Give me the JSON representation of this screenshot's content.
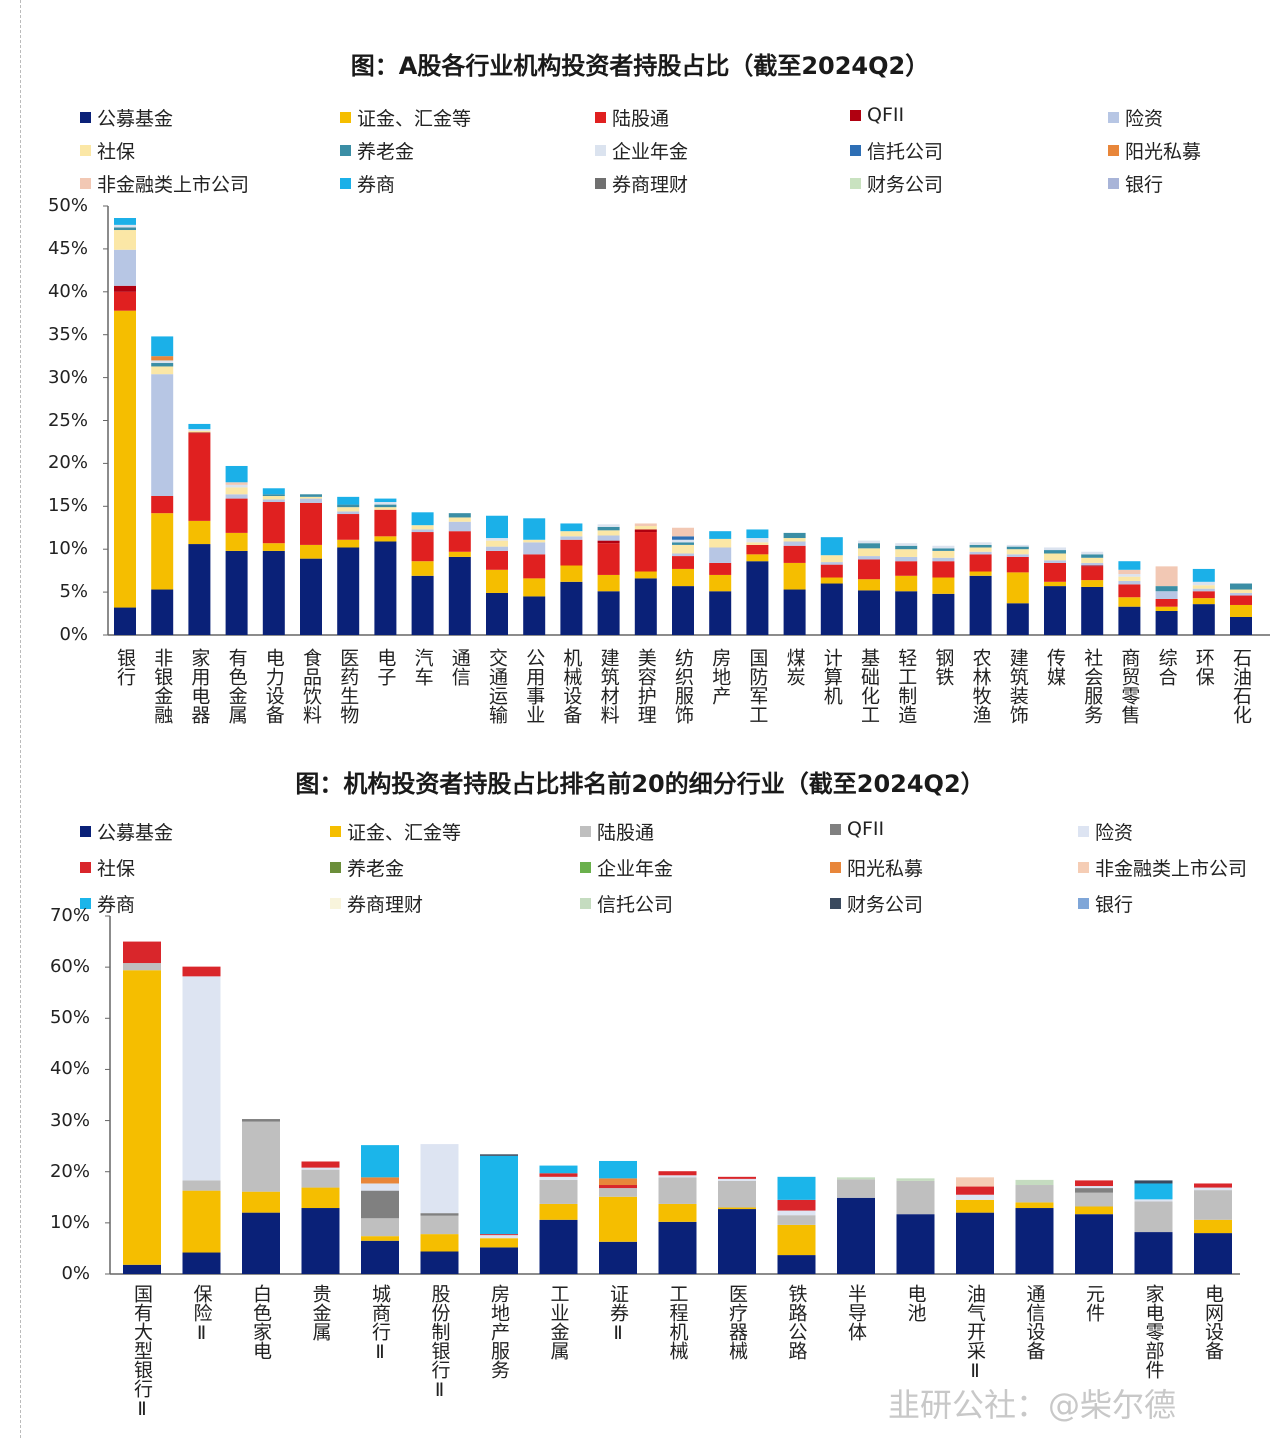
{
  "watermark": "韭研公社：@柴尔德",
  "chart_data": [
    {
      "type": "bar",
      "stacked": true,
      "title": "图：A股各行业机构投资者持股占比（截至2024Q2）",
      "ylim": [
        0,
        50
      ],
      "yticks": [
        "0%",
        "5%",
        "10%",
        "15%",
        "20%",
        "25%",
        "30%",
        "35%",
        "40%",
        "45%",
        "50%"
      ],
      "legend_position": "top",
      "grid": false,
      "categories": [
        "银行",
        "非银金融",
        "家用电器",
        "有色金属",
        "电力设备",
        "食品饮料",
        "医药生物",
        "电子",
        "汽车",
        "通信",
        "交通运输",
        "公用事业",
        "机械设备",
        "建筑材料",
        "美容护理",
        "纺织服饰",
        "房地产",
        "国防军工",
        "煤炭",
        "计算机",
        "基础化工",
        "轻工制造",
        "钢铁",
        "农林牧渔",
        "建筑装饰",
        "传媒",
        "社会服务",
        "商贸零售",
        "综合",
        "环保",
        "石油石化"
      ],
      "series": [
        {
          "name": "公募基金",
          "color": "#0a2178",
          "values": [
            3.2,
            5.3,
            10.6,
            9.8,
            9.8,
            8.9,
            10.2,
            10.9,
            6.9,
            9.1,
            4.9,
            4.5,
            6.2,
            5.1,
            6.6,
            5.7,
            5.1,
            8.6,
            5.3,
            6.0,
            5.2,
            5.1,
            4.8,
            6.9,
            3.7,
            5.7,
            5.6,
            3.3,
            2.8,
            3.6,
            2.1
          ]
        },
        {
          "name": "证金、汇金等",
          "color": "#f5be00",
          "values": [
            34.6,
            8.9,
            2.7,
            2.1,
            0.9,
            1.6,
            0.9,
            0.6,
            1.7,
            0.6,
            2.7,
            2.1,
            1.9,
            1.9,
            0.8,
            2.0,
            1.9,
            0.8,
            3.1,
            0.7,
            1.3,
            1.8,
            1.9,
            0.5,
            3.6,
            0.5,
            0.8,
            1.1,
            0.5,
            0.7,
            1.4
          ]
        },
        {
          "name": "陆股通",
          "color": "#e02020",
          "values": [
            2.2,
            2.0,
            10.2,
            4.0,
            4.8,
            4.9,
            3.0,
            3.1,
            3.4,
            2.4,
            2.2,
            2.8,
            3.0,
            3.7,
            4.6,
            1.5,
            1.4,
            1.1,
            2.0,
            1.5,
            2.3,
            1.7,
            1.9,
            2.0,
            1.8,
            2.2,
            1.6,
            1.5,
            0.9,
            0.8,
            1.1
          ]
        },
        {
          "name": "QFII",
          "color": "#b00010",
          "values": [
            0.7,
            0,
            0.1,
            0,
            0,
            0,
            0,
            0,
            0,
            0,
            0,
            0,
            0,
            0.3,
            0.3,
            0,
            0,
            0,
            0,
            0,
            0,
            0,
            0,
            0,
            0,
            0,
            0.1,
            0,
            0,
            0,
            0
          ]
        },
        {
          "name": "险资",
          "color": "#b7c6e4",
          "values": [
            4.2,
            14.2,
            0,
            0.5,
            0.3,
            0.5,
            0.3,
            0,
            0.3,
            1.1,
            0.5,
            1.4,
            0.4,
            0.6,
            0,
            0.3,
            1.8,
            0,
            0.5,
            0.3,
            0.4,
            0.5,
            0.4,
            0.3,
            0.3,
            0.3,
            0.3,
            0.4,
            0.9,
            0.3,
            0.3
          ]
        },
        {
          "name": "社保",
          "color": "#fbe7a6",
          "values": [
            2.3,
            0.9,
            0.2,
            0.8,
            0.4,
            0.2,
            0.5,
            0.3,
            0.5,
            0.5,
            0.7,
            0.3,
            0.6,
            0.6,
            0.4,
            1.0,
            1.0,
            0.3,
            0.4,
            0.8,
            0.9,
            0.9,
            0.8,
            0.5,
            0.6,
            0.8,
            0.6,
            0.5,
            0,
            0.4,
            0.4
          ]
        },
        {
          "name": "养老金",
          "color": "#3b8ea5",
          "values": [
            0.3,
            0.4,
            0,
            0,
            0.2,
            0.3,
            0.3,
            0.3,
            0,
            0.5,
            0,
            0,
            0,
            0.4,
            0,
            0.3,
            0,
            0,
            0.6,
            0,
            0.6,
            0.4,
            0.3,
            0.3,
            0.3,
            0.4,
            0.4,
            0,
            0.6,
            0,
            0.7
          ]
        },
        {
          "name": "企业年金",
          "color": "#dbe3ef",
          "values": [
            0.3,
            0.3,
            0.2,
            0.3,
            0,
            0,
            0,
            0.3,
            0,
            0,
            0.3,
            0,
            0,
            0.3,
            0,
            0.3,
            0,
            0.5,
            0,
            0,
            0.3,
            0.3,
            0.3,
            0.3,
            0.2,
            0.3,
            0.3,
            0.3,
            0,
            0.4,
            0
          ]
        },
        {
          "name": "信托公司",
          "color": "#2e6fb5",
          "values": [
            0,
            0,
            0,
            0,
            0,
            0,
            0,
            0,
            0,
            0,
            0,
            0,
            0,
            0,
            0,
            0.4,
            0,
            0,
            0,
            0,
            0,
            0,
            0,
            0,
            0,
            0,
            0,
            0,
            0,
            0,
            0
          ]
        },
        {
          "name": "阳光私募",
          "color": "#e8863a",
          "values": [
            0,
            0.5,
            0,
            0,
            0,
            0,
            0,
            0,
            0,
            0,
            0,
            0,
            0,
            0,
            0,
            0,
            0,
            0,
            0,
            0,
            0,
            0,
            0,
            0,
            0,
            0,
            0,
            0,
            0,
            0,
            0
          ]
        },
        {
          "name": "非金融类上市公司",
          "color": "#f2c8b4",
          "values": [
            0,
            0,
            0,
            0.3,
            0,
            0,
            0,
            0,
            0,
            0,
            0,
            0,
            0,
            0,
            0.3,
            1.0,
            0,
            0,
            0,
            0,
            0,
            0,
            0,
            0,
            0,
            0,
            0,
            0.5,
            2.3,
            0,
            0
          ]
        },
        {
          "name": "券商",
          "color": "#1bb0e8",
          "values": [
            0.8,
            2.3,
            0.6,
            1.9,
            0.7,
            0,
            0.9,
            0.4,
            1.5,
            0,
            2.6,
            2.5,
            0.9,
            0,
            0,
            0,
            0.9,
            1.0,
            0,
            2.1,
            0,
            0,
            0,
            0,
            0,
            0,
            0,
            1.0,
            0,
            1.5,
            0
          ]
        },
        {
          "name": "券商理财",
          "color": "#707070",
          "values": [
            0,
            0,
            0,
            0,
            0,
            0,
            0,
            0,
            0,
            0,
            0,
            0,
            0,
            0,
            0,
            0,
            0,
            0,
            0,
            0,
            0,
            0,
            0,
            0,
            0,
            0,
            0,
            0,
            0,
            0,
            0
          ]
        },
        {
          "name": "财务公司",
          "color": "#c9e2c0",
          "values": [
            0,
            0,
            0,
            0,
            0,
            0,
            0,
            0,
            0,
            0,
            0,
            0,
            0,
            0,
            0,
            0,
            0,
            0,
            0,
            0,
            0,
            0,
            0,
            0,
            0,
            0,
            0,
            0,
            0,
            0,
            0
          ]
        },
        {
          "name": "银行",
          "color": "#a8b4d8",
          "values": [
            0,
            0,
            0,
            0,
            0,
            0,
            0,
            0,
            0,
            0,
            0,
            0,
            0,
            0,
            0,
            0,
            0,
            0,
            0,
            0,
            0,
            0,
            0,
            0,
            0,
            0,
            0,
            0,
            0,
            0,
            0
          ]
        }
      ]
    },
    {
      "type": "bar",
      "stacked": true,
      "title": "图：机构投资者持股占比排名前20的细分行业（截至2024Q2）",
      "ylim": [
        0,
        70
      ],
      "yticks": [
        "0%",
        "10%",
        "20%",
        "30%",
        "40%",
        "50%",
        "60%",
        "70%"
      ],
      "legend_position": "top",
      "grid": false,
      "categories": [
        "国有大型银行Ⅱ",
        "保险Ⅱ",
        "白色家电",
        "贵金属",
        "城商行Ⅱ",
        "股份制银行Ⅱ",
        "房地产服务",
        "工业金属",
        "证券Ⅱ",
        "工程机械",
        "医疗器械",
        "铁路公路",
        "半导体",
        "电池",
        "油气开采Ⅱ",
        "通信设备",
        "元件",
        "家电零部件",
        "电网设备"
      ],
      "series": [
        {
          "name": "公募基金",
          "color": "#0a2178",
          "values": [
            1.8,
            4.2,
            12.0,
            12.9,
            6.5,
            4.4,
            5.2,
            10.6,
            6.3,
            10.2,
            12.7,
            3.7,
            14.9,
            11.7,
            12.0,
            12.9,
            11.7,
            8.2,
            8.0
          ]
        },
        {
          "name": "证金、汇金等",
          "color": "#f5be00",
          "values": [
            57.6,
            12.1,
            4.1,
            4.0,
            0.9,
            3.4,
            1.8,
            3.1,
            8.8,
            3.5,
            0.3,
            5.9,
            0,
            0,
            2.5,
            1.1,
            1.5,
            0,
            2.6
          ]
        },
        {
          "name": "陆股通",
          "color": "#bfbfbf",
          "values": [
            1.4,
            2.0,
            13.7,
            3.5,
            3.5,
            3.6,
            0,
            4.7,
            1.7,
            5.2,
            5.2,
            1.9,
            3.6,
            6.5,
            0,
            3.4,
            2.7,
            6.0,
            5.8
          ]
        },
        {
          "name": "QFII",
          "color": "#808080",
          "values": [
            0,
            0,
            0.5,
            0,
            5.4,
            0.5,
            0,
            0,
            0,
            0,
            0,
            0,
            0,
            0,
            0,
            0,
            0.9,
            0,
            0
          ]
        },
        {
          "name": "险资",
          "color": "#dde4f2",
          "values": [
            0,
            39.9,
            0,
            0.4,
            1.4,
            13.5,
            0.6,
            0.6,
            0,
            0.4,
            0.4,
            0.9,
            0,
            0,
            1.0,
            0,
            0.4,
            0.4,
            0.5
          ]
        },
        {
          "name": "社保",
          "color": "#d9262b",
          "values": [
            4.2,
            1.9,
            0,
            1.2,
            0,
            0,
            0.2,
            0.7,
            0.6,
            0.8,
            0.4,
            2.1,
            0,
            0,
            1.6,
            0,
            1.1,
            0,
            0.8
          ]
        },
        {
          "name": "养老金",
          "color": "#6b8e3a",
          "values": [
            0,
            0,
            0,
            0,
            0,
            0,
            0,
            0,
            0,
            0,
            0,
            0,
            0,
            0,
            0,
            0,
            0,
            0,
            0
          ]
        },
        {
          "name": "企业年金",
          "color": "#6ab04c",
          "values": [
            0,
            0,
            0,
            0,
            0,
            0,
            0,
            0,
            0,
            0,
            0,
            0,
            0,
            0,
            0,
            0,
            0,
            0,
            0
          ]
        },
        {
          "name": "阳光私募",
          "color": "#e8863a",
          "values": [
            0,
            0,
            0,
            0,
            1.2,
            0,
            0,
            0,
            1.3,
            0,
            0,
            0,
            0,
            0,
            0,
            0,
            0,
            0,
            0
          ]
        },
        {
          "name": "非金融类上市公司",
          "color": "#f5cdb5",
          "values": [
            0,
            0,
            0,
            0,
            0,
            0,
            0,
            0,
            0,
            0,
            0,
            0,
            0,
            0,
            1.8,
            0,
            0,
            0,
            0
          ]
        },
        {
          "name": "券商",
          "color": "#1bb5ea",
          "values": [
            0,
            0,
            0,
            0,
            6.3,
            0,
            15.3,
            1.5,
            3.4,
            0,
            0,
            4.5,
            0,
            0,
            0,
            0,
            0,
            3.1,
            0
          ]
        },
        {
          "name": "券商理财",
          "color": "#f8f4dc",
          "values": [
            0,
            0,
            0,
            0,
            0,
            0,
            0,
            0,
            0,
            0,
            0,
            0,
            0,
            0,
            0,
            0,
            0,
            0,
            0
          ]
        },
        {
          "name": "信托公司",
          "color": "#c5dcc0",
          "values": [
            0,
            0,
            0,
            0,
            0,
            0,
            0,
            0,
            0,
            0,
            0,
            0,
            0.4,
            0.5,
            0,
            1.0,
            0,
            0,
            0
          ]
        },
        {
          "name": "财务公司",
          "color": "#3a4a5e",
          "values": [
            0,
            0,
            0,
            0,
            0,
            0,
            0.3,
            0,
            0,
            0,
            0,
            0,
            0,
            0,
            0,
            0,
            0,
            0.6,
            0
          ]
        },
        {
          "name": "银行",
          "color": "#7fa6d8",
          "values": [
            0,
            0,
            0,
            0,
            0,
            0,
            0,
            0,
            0,
            0,
            0,
            0,
            0,
            0,
            0,
            0,
            0,
            0,
            0
          ]
        }
      ]
    }
  ]
}
